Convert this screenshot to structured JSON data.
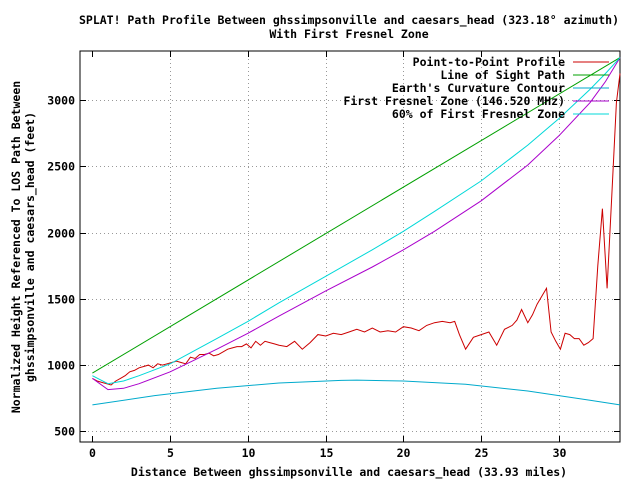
{
  "chart_data": {
    "type": "line",
    "title": [
      "SPLAT! Path Profile Between ghssimpsonville and caesars_head (323.18° azimuth)",
      "With First Fresnel Zone"
    ],
    "xlabel": "Distance Between ghssimpsonville and caesars_head (33.93 miles)",
    "ylabel": [
      "Normalized Height Referenced To LOS Path Between",
      "ghssimpsonville and caesars_head (feet)"
    ],
    "xlim": [
      -0.8,
      33.93
    ],
    "ylim": [
      420,
      3370
    ],
    "xticks": [
      "0",
      "5",
      "10",
      "15",
      "20",
      "25",
      "30"
    ],
    "xtick_values": [
      0,
      5,
      10,
      15,
      20,
      25,
      30
    ],
    "yticks": [
      "500",
      "1000",
      "1500",
      "2000",
      "2500",
      "3000"
    ],
    "ytick_values": [
      500,
      1000,
      1500,
      2000,
      2500,
      3000
    ],
    "grid": true,
    "legend_position": "top-right",
    "series": [
      {
        "name": "Point-to-Point Profile",
        "color": "#cc0000",
        "x": [
          0,
          0.3,
          0.6,
          0.9,
          1.2,
          1.5,
          1.8,
          2.1,
          2.4,
          2.7,
          3.0,
          3.3,
          3.6,
          3.9,
          4.2,
          4.5,
          4.8,
          5.1,
          5.4,
          5.7,
          6.0,
          6.3,
          6.6,
          6.9,
          7.2,
          7.5,
          7.8,
          8.1,
          8.4,
          8.7,
          9.0,
          9.3,
          9.6,
          9.9,
          10.2,
          10.5,
          10.8,
          11.1,
          11.4,
          11.7,
          12.0,
          12.5,
          13.0,
          13.5,
          14.0,
          14.5,
          15.0,
          15.5,
          16.0,
          16.5,
          17.0,
          17.5,
          18.0,
          18.5,
          19.0,
          19.5,
          20.0,
          20.5,
          21.0,
          21.5,
          22.0,
          22.5,
          23.0,
          23.3,
          23.6,
          24.0,
          24.5,
          25.0,
          25.5,
          26.0,
          26.5,
          27.0,
          27.3,
          27.6,
          28.0,
          28.3,
          28.6,
          28.9,
          29.2,
          29.5,
          29.8,
          30.1,
          30.4,
          30.7,
          31.0,
          31.3,
          31.6,
          31.9,
          32.2,
          32.5,
          32.8,
          33.1,
          33.4,
          33.7,
          33.93
        ],
        "values": [
          900,
          880,
          870,
          860,
          850,
          880,
          900,
          920,
          950,
          960,
          980,
          990,
          1000,
          980,
          1010,
          1000,
          1010,
          1020,
          1030,
          1020,
          1010,
          1060,
          1050,
          1080,
          1080,
          1090,
          1070,
          1080,
          1100,
          1120,
          1130,
          1140,
          1140,
          1160,
          1130,
          1180,
          1150,
          1180,
          1170,
          1160,
          1150,
          1140,
          1180,
          1120,
          1170,
          1230,
          1220,
          1240,
          1230,
          1250,
          1270,
          1250,
          1280,
          1250,
          1260,
          1250,
          1290,
          1280,
          1260,
          1300,
          1320,
          1330,
          1320,
          1330,
          1230,
          1120,
          1210,
          1230,
          1250,
          1150,
          1270,
          1300,
          1340,
          1420,
          1320,
          1380,
          1460,
          1520,
          1580,
          1250,
          1180,
          1120,
          1240,
          1230,
          1200,
          1200,
          1150,
          1170,
          1200,
          1750,
          2180,
          1580,
          2280,
          2980,
          3200
        ]
      },
      {
        "name": "Line of Sight Path",
        "color": "#00a000",
        "x": [
          0,
          33.93
        ],
        "values": [
          940,
          3320
        ]
      },
      {
        "name": "Earth's Curvature Contour",
        "color": "#00aacc",
        "x": [
          0,
          4,
          8,
          12,
          16,
          17,
          20,
          24,
          28,
          32,
          33.93
        ],
        "values": [
          700,
          770,
          825,
          865,
          885,
          887,
          880,
          855,
          805,
          735,
          700
        ]
      },
      {
        "name": "First Fresnel Zone (146.520 MHz)",
        "color": "#aa00cc",
        "x": [
          0,
          1,
          2,
          3,
          5,
          8,
          10,
          12,
          15,
          18,
          20,
          22,
          25,
          28,
          30,
          32,
          33,
          33.93
        ],
        "values": [
          900,
          815,
          825,
          860,
          950,
          1120,
          1240,
          1370,
          1560,
          1740,
          1870,
          2010,
          2240,
          2510,
          2730,
          2980,
          3140,
          3320
        ]
      },
      {
        "name": "60% of First Fresnel Zone",
        "color": "#00d8d8",
        "x": [
          0,
          1,
          2,
          3,
          5,
          8,
          10,
          12,
          15,
          18,
          20,
          22,
          25,
          28,
          30,
          32,
          33,
          33.93
        ],
        "values": [
          920,
          860,
          880,
          920,
          1010,
          1200,
          1330,
          1470,
          1670,
          1870,
          2010,
          2160,
          2390,
          2660,
          2860,
          3080,
          3200,
          3320
        ]
      }
    ]
  }
}
